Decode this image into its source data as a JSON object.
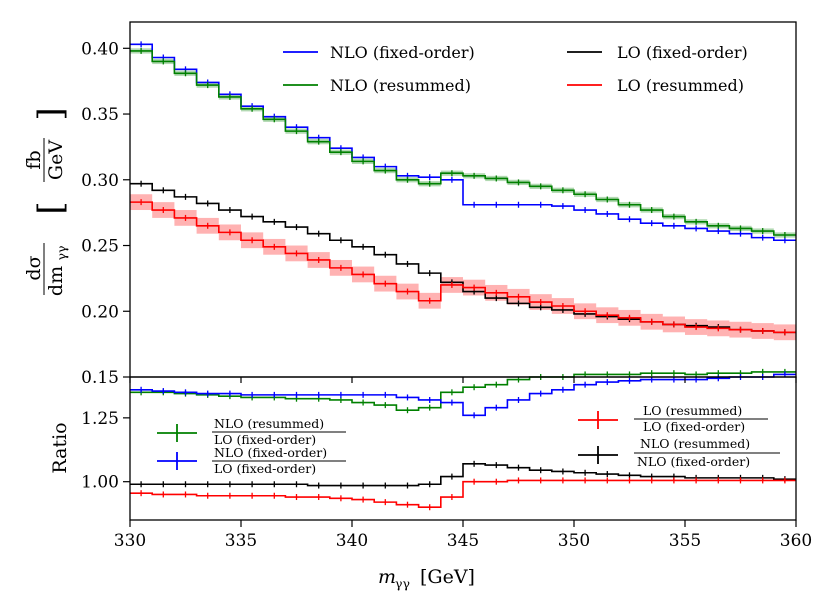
{
  "chart_data": [
    {
      "type": "line",
      "panel": "main",
      "ylabel": "dσ/dm_γγ [fb/GeV]",
      "ylabel_parts": {
        "num": "dσ",
        "den": "dm",
        "den_sub": "γγ",
        "unit_num": "fb",
        "unit_den": "GeV"
      },
      "xlim": [
        330,
        360
      ],
      "ylim": [
        0.15,
        0.42
      ],
      "yticks": [
        "0.15",
        "0.20",
        "0.25",
        "0.30",
        "0.35",
        "0.40"
      ],
      "bin_edges": [
        330,
        331,
        332,
        333,
        334,
        335,
        336,
        337,
        338,
        339,
        340,
        341,
        342,
        343,
        344,
        345,
        346,
        347,
        348,
        349,
        350,
        351,
        352,
        353,
        354,
        355,
        356,
        357,
        358,
        359,
        360
      ],
      "legend": {
        "nlo_fixed": "NLO (fixed-order)",
        "nlo_resummed": "NLO (resummed)",
        "lo_fixed": "LO (fixed-order)",
        "lo_resummed": "LO (resummed)"
      },
      "series": [
        {
          "name": "NLO (fixed-order)",
          "color": "#0000ff",
          "values": [
            0.403,
            0.393,
            0.384,
            0.374,
            0.365,
            0.356,
            0.348,
            0.34,
            0.332,
            0.324,
            0.317,
            0.31,
            0.303,
            0.302,
            0.3,
            0.281,
            0.281,
            0.281,
            0.281,
            0.28,
            0.277,
            0.274,
            0.27,
            0.267,
            0.265,
            0.263,
            0.261,
            0.259,
            0.256,
            0.254
          ]
        },
        {
          "name": "NLO (resummed)",
          "color": "#008000",
          "values": [
            0.398,
            0.39,
            0.381,
            0.372,
            0.363,
            0.354,
            0.346,
            0.337,
            0.329,
            0.321,
            0.314,
            0.307,
            0.3,
            0.297,
            0.305,
            0.303,
            0.301,
            0.298,
            0.295,
            0.292,
            0.289,
            0.285,
            0.281,
            0.277,
            0.272,
            0.268,
            0.265,
            0.263,
            0.261,
            0.258
          ],
          "band_half_width": 0.002
        },
        {
          "name": "LO (fixed-order)",
          "color": "#000000",
          "values": [
            0.297,
            0.292,
            0.287,
            0.282,
            0.277,
            0.272,
            0.268,
            0.264,
            0.259,
            0.254,
            0.249,
            0.243,
            0.236,
            0.229,
            0.222,
            0.215,
            0.21,
            0.206,
            0.203,
            0.201,
            0.198,
            0.196,
            0.194,
            0.192,
            0.19,
            0.189,
            0.188,
            0.186,
            0.185,
            0.184
          ]
        },
        {
          "name": "LO (resummed)",
          "color": "#ff0000",
          "values": [
            0.283,
            0.277,
            0.271,
            0.265,
            0.26,
            0.254,
            0.249,
            0.244,
            0.239,
            0.233,
            0.228,
            0.221,
            0.215,
            0.208,
            0.22,
            0.218,
            0.214,
            0.211,
            0.207,
            0.204,
            0.2,
            0.197,
            0.195,
            0.192,
            0.19,
            0.188,
            0.187,
            0.186,
            0.185,
            0.184
          ],
          "band_half_width": 0.006
        }
      ]
    },
    {
      "type": "line",
      "panel": "ratio",
      "xlabel": "m_γγ [GeV]",
      "xlabel_parts": {
        "main": "m",
        "sub": "γγ",
        "unit": "[GeV]"
      },
      "ylabel": "Ratio",
      "xlim": [
        330,
        360
      ],
      "ylim": [
        0.85,
        1.41
      ],
      "xticks": [
        "330",
        "335",
        "340",
        "345",
        "350",
        "355",
        "360"
      ],
      "yticks": [
        "1.00",
        "1.25"
      ],
      "legend": {
        "r1_num": "NLO (resummed)",
        "r1_den": "LO (fixed-order)",
        "r2_num": "NLO (fixed-order)",
        "r2_den": "LO (fixed-order)",
        "r3_num": "LO (resummed)",
        "r3_den": "LO (fixed-order)",
        "r4_num": "NLO (resummed)",
        "r4_den": "NLO (fixed-order)"
      },
      "series": [
        {
          "name": "NLO (resummed) / LO (fixed-order)",
          "color": "#008000",
          "values": [
            1.35,
            1.35,
            1.345,
            1.34,
            1.335,
            1.33,
            1.33,
            1.325,
            1.325,
            1.32,
            1.31,
            1.3,
            1.28,
            1.29,
            1.35,
            1.37,
            1.38,
            1.4,
            1.41,
            1.41,
            1.42,
            1.42,
            1.42,
            1.425,
            1.425,
            1.42,
            1.425,
            1.425,
            1.43,
            1.43
          ]
        },
        {
          "name": "NLO (fixed-order) / LO (fixed-order)",
          "color": "#0000ff",
          "values": [
            1.36,
            1.355,
            1.35,
            1.345,
            1.345,
            1.34,
            1.34,
            1.34,
            1.34,
            1.34,
            1.34,
            1.34,
            1.33,
            1.32,
            1.31,
            1.26,
            1.29,
            1.32,
            1.345,
            1.36,
            1.38,
            1.39,
            1.395,
            1.4,
            1.4,
            1.4,
            1.405,
            1.41,
            1.41,
            1.42
          ]
        },
        {
          "name": "NLO (resummed) / NLO (fixed-order)",
          "color": "#000000",
          "values": [
            0.99,
            0.99,
            0.99,
            0.99,
            0.99,
            0.99,
            0.99,
            0.99,
            0.985,
            0.985,
            0.985,
            0.985,
            0.985,
            0.99,
            1.02,
            1.07,
            1.065,
            1.055,
            1.045,
            1.04,
            1.035,
            1.03,
            1.025,
            1.02,
            1.02,
            1.015,
            1.015,
            1.015,
            1.015,
            1.01
          ]
        },
        {
          "name": "LO (resummed) / LO (fixed-order)",
          "color": "#ff0000",
          "values": [
            0.955,
            0.95,
            0.95,
            0.945,
            0.945,
            0.945,
            0.945,
            0.94,
            0.94,
            0.935,
            0.93,
            0.92,
            0.91,
            0.9,
            0.94,
            1.0,
            1.0,
            1.005,
            1.005,
            1.005,
            1.005,
            1.005,
            1.005,
            1.005,
            1.005,
            1.005,
            1.005,
            1.005,
            1.005,
            1.005
          ]
        }
      ]
    }
  ]
}
